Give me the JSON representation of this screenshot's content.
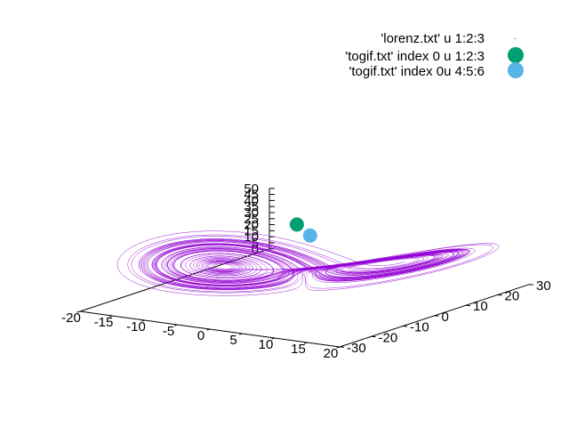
{
  "chart_data": {
    "type": "scatter3d",
    "title": "",
    "x_ticks": [
      "-20",
      "-15",
      "-10",
      "-5",
      "0",
      "5",
      "10",
      "15",
      "20"
    ],
    "y_ticks": [
      "-30",
      "-20",
      "-10",
      "0",
      "10",
      "20",
      "30"
    ],
    "z_ticks": [
      "0",
      "5",
      "10",
      "15",
      "20",
      "25",
      "30",
      "35",
      "40",
      "45",
      "50"
    ],
    "xlim": [
      -20,
      20
    ],
    "ylim": [
      -30,
      30
    ],
    "zlim": [
      0,
      50
    ],
    "legend_position": "top-right",
    "series": [
      {
        "name": "'lorenz.txt' u 1:2:3",
        "style": "dots",
        "color": "#9400d3",
        "description_values": "Lorenz attractor trajectory (x,y,z), sigma=10, rho=28, beta=8/3"
      },
      {
        "name": "'togif.txt' index 0 u 1:2:3",
        "style": "circle",
        "color": "#009e73",
        "points": [
          {
            "x": -7.5,
            "y": 13,
            "z": 44
          }
        ]
      },
      {
        "name": "'togif.txt' index 0u 4:5:6",
        "style": "circle",
        "color": "#56b4e9",
        "points": [
          {
            "x": -4,
            "y": 10,
            "z": 40
          }
        ]
      }
    ]
  }
}
